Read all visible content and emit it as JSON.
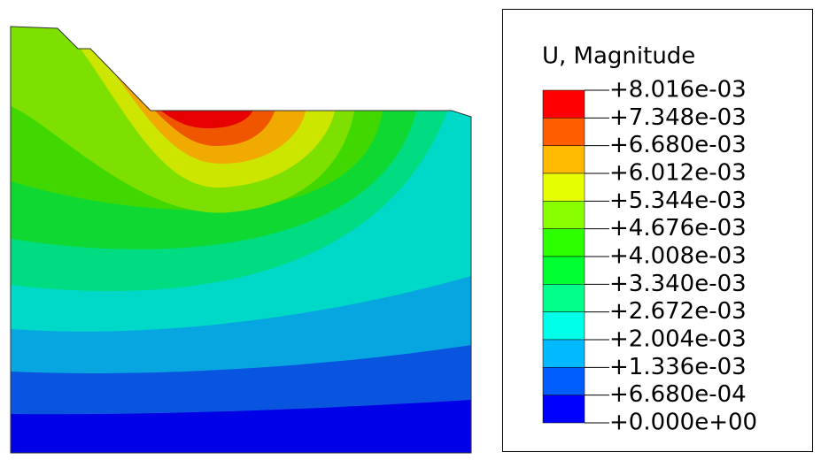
{
  "legend": {
    "title": "U, Magnitude",
    "labels": [
      "+8.016e-03",
      "+7.348e-03",
      "+6.680e-03",
      "+6.012e-03",
      "+5.344e-03",
      "+4.676e-03",
      "+4.008e-03",
      "+3.340e-03",
      "+2.672e-03",
      "+2.004e-03",
      "+1.336e-03",
      "+6.680e-04",
      "+0.000e+00"
    ],
    "colors": [
      "#ff0000",
      "#ff5d00",
      "#ffb900",
      "#e6ff00",
      "#8aff00",
      "#2eff00",
      "#00ff2e",
      "#00ff8b",
      "#00ffe8",
      "#00b9ff",
      "#005dff",
      "#0000ff"
    ]
  }
}
